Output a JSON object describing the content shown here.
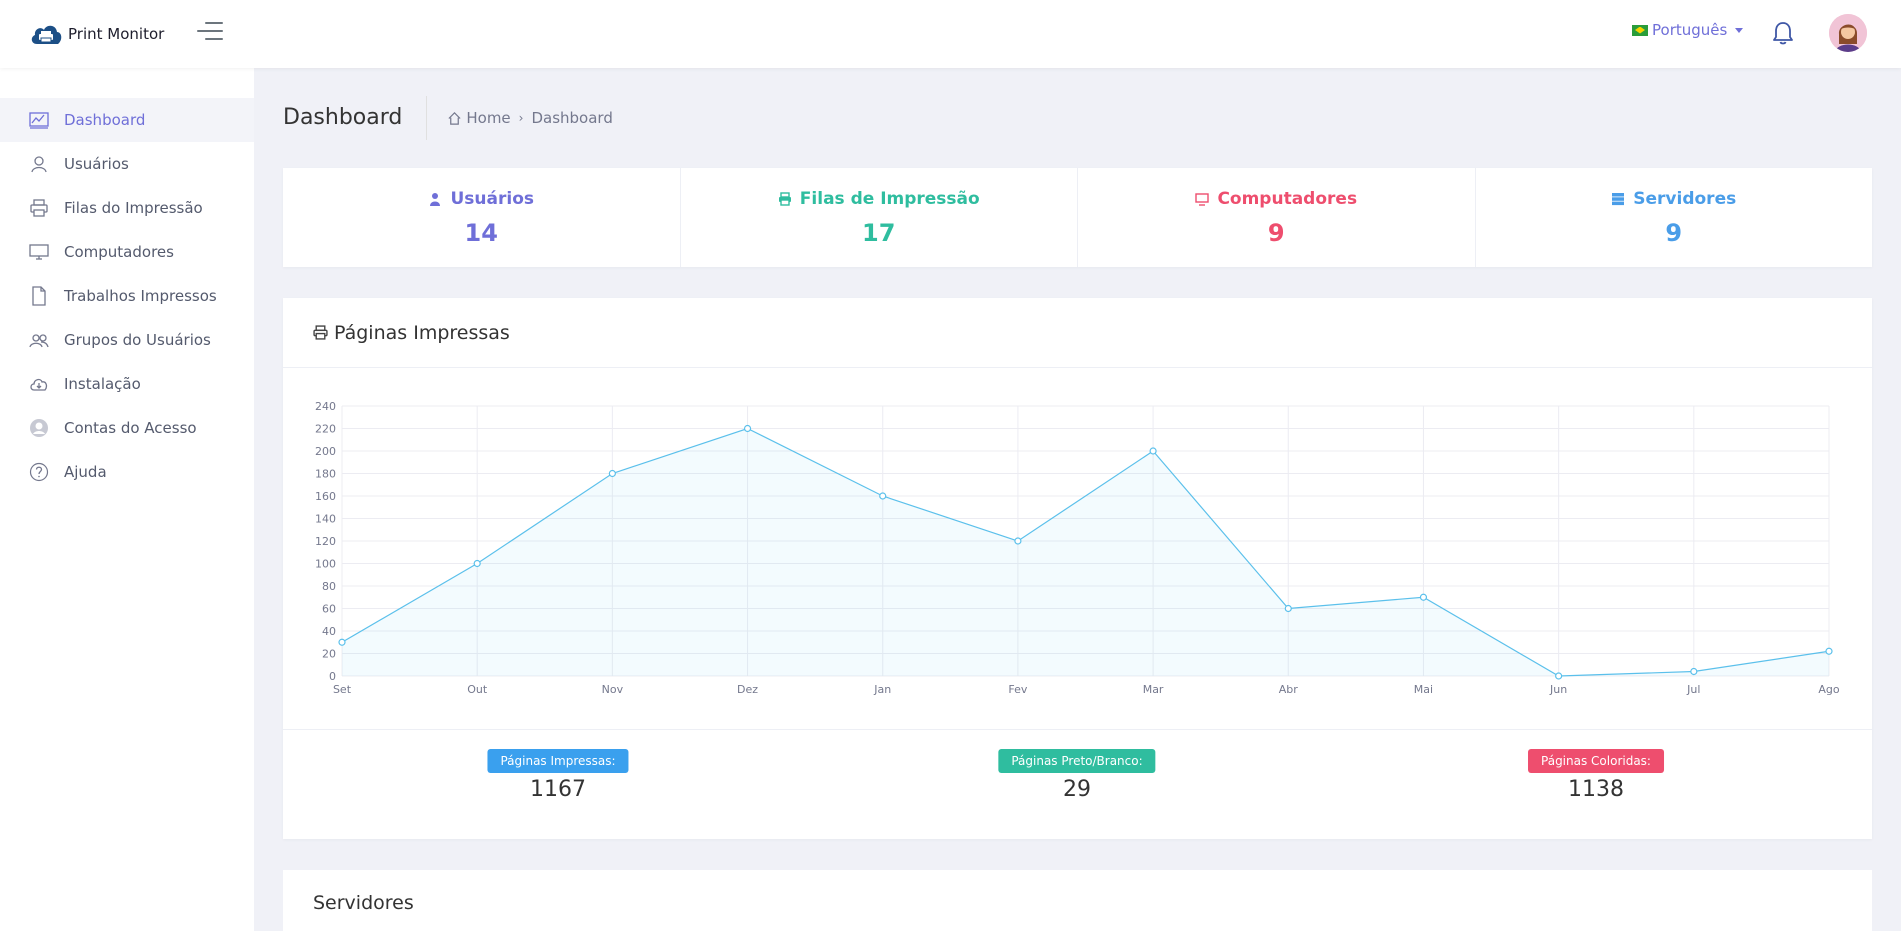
{
  "app": {
    "name": "Print Monitor"
  },
  "topbar": {
    "language": "Português"
  },
  "sidebar": {
    "items": [
      {
        "label": "Dashboard",
        "icon": "chart-line-icon"
      },
      {
        "label": "Usuários",
        "icon": "user-icon"
      },
      {
        "label": "Filas do Impressão",
        "icon": "printer-icon"
      },
      {
        "label": "Computadores",
        "icon": "monitor-icon"
      },
      {
        "label": "Trabalhos Impressos",
        "icon": "document-icon"
      },
      {
        "label": "Grupos do Usuários",
        "icon": "users-icon"
      },
      {
        "label": "Instalação",
        "icon": "cloud-download-icon"
      },
      {
        "label": "Contas do Acesso",
        "icon": "account-icon"
      },
      {
        "label": "Ajuda",
        "icon": "help-icon"
      }
    ]
  },
  "page": {
    "title": "Dashboard",
    "breadcrumb": {
      "home": "Home",
      "current": "Dashboard"
    }
  },
  "stats": [
    {
      "label": "Usuários",
      "value": "14",
      "color": "#6f6fd8",
      "icon": "user-icon"
    },
    {
      "label": "Filas de Impressão",
      "value": "17",
      "color": "#2fbd9f",
      "icon": "printer-icon"
    },
    {
      "label": "Computadores",
      "value": "9",
      "color": "#ee4e6e",
      "icon": "monitor-icon"
    },
    {
      "label": "Servidores",
      "value": "9",
      "color": "#4a9de8",
      "icon": "server-icon"
    }
  ],
  "chart_card": {
    "title": "Páginas Impressas"
  },
  "chart_data": {
    "type": "area",
    "categories": [
      "Set",
      "Out",
      "Nov",
      "Dez",
      "Jan",
      "Fev",
      "Mar",
      "Abr",
      "Mai",
      "Jun",
      "Jul",
      "Ago"
    ],
    "values": [
      30,
      100,
      180,
      220,
      160,
      120,
      200,
      60,
      70,
      0,
      4,
      22
    ],
    "ylim": [
      0,
      240
    ],
    "yticks": [
      0,
      20,
      40,
      60,
      80,
      100,
      120,
      140,
      160,
      180,
      200,
      220,
      240
    ],
    "grid": true,
    "line_color": "#5bc0eb"
  },
  "summary": [
    {
      "label": "Páginas Impressas:",
      "value": "1167",
      "color": "#3aa0ee"
    },
    {
      "label": "Páginas Preto/Branco:",
      "value": "29",
      "color": "#2fbd9f"
    },
    {
      "label": "Páginas Coloridas:",
      "value": "1138",
      "color": "#ee4e6e"
    }
  ],
  "servers_card": {
    "title": "Servidores"
  }
}
